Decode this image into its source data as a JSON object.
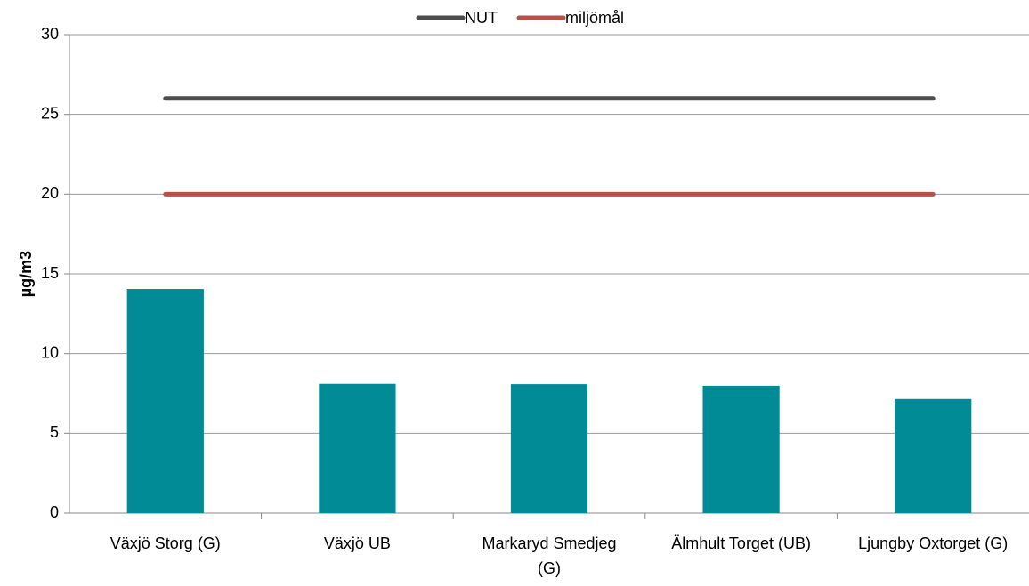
{
  "chart_data": {
    "type": "bar",
    "y_label": "µg/m3",
    "categories": [
      "Växjö Storg (G)",
      "Växjö UB",
      "Markaryd Smedjeg (G)",
      "Älmhult Torget (UB)",
      "Ljungby Oxtorget (G)"
    ],
    "values": [
      14.05,
      8.1,
      8.08,
      7.98,
      7.15
    ],
    "color": "#008b96",
    "series": [
      {
        "name": "NUT",
        "type": "line",
        "color": "#4d4d4d",
        "values": [
          26,
          26,
          26,
          26,
          26
        ]
      },
      {
        "name": "miljömål",
        "type": "line",
        "color": "#b5524a",
        "values": [
          20,
          20,
          20,
          20,
          20
        ]
      }
    ],
    "ylim": [
      0,
      30
    ],
    "yticks": [
      0,
      5,
      10,
      15,
      20,
      25,
      30
    ],
    "grid": true,
    "legend": "top"
  }
}
